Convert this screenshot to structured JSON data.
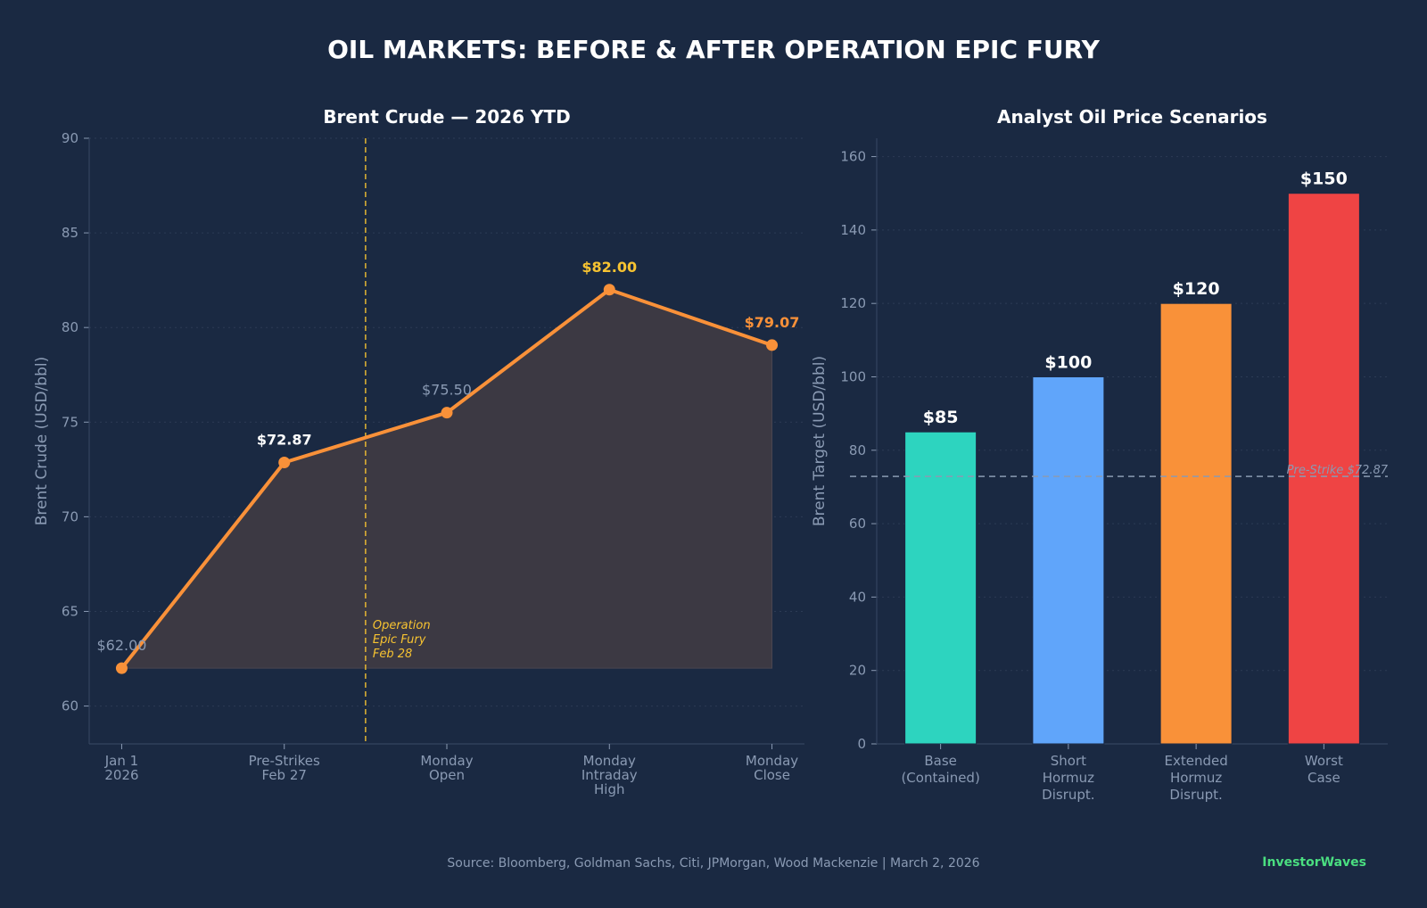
{
  "title": "OIL MARKETS: BEFORE & AFTER OPERATION EPIC FURY",
  "colors": {
    "background": "#1a2942",
    "line": "#f99139",
    "highlight": "#f7c331",
    "label_white": "#ffffff",
    "label_muted": "#8a9ab3",
    "brand": "#4ade80"
  },
  "chart_data": [
    {
      "type": "line",
      "title": "Brent Crude — 2026 YTD",
      "xlabel": "",
      "ylabel": "Brent Crude (USD/bbl)",
      "ylim": [
        58,
        90
      ],
      "yticks": [
        60,
        65,
        70,
        75,
        80,
        85,
        90
      ],
      "categories": [
        [
          "Jan 1",
          "2026"
        ],
        [
          "Pre-Strikes",
          "Feb 27"
        ],
        [
          "Monday",
          "Open"
        ],
        [
          "Monday",
          "Intraday",
          "High"
        ],
        [
          "Monday",
          "Close"
        ]
      ],
      "values": [
        62.0,
        72.87,
        75.5,
        82.0,
        79.07
      ],
      "data_labels": [
        {
          "text": "$62.00",
          "style": "muted"
        },
        {
          "text": "$72.87",
          "style": "white"
        },
        {
          "text": "$75.50",
          "style": "muted"
        },
        {
          "text": "$82.00",
          "style": "highlight"
        },
        {
          "text": "$79.07",
          "style": "line"
        }
      ],
      "event": {
        "x_position": 1.5,
        "label": [
          "Operation",
          "Epic Fury",
          "Feb 28"
        ]
      },
      "fill_baseline": 62.0
    },
    {
      "type": "bar",
      "title": "Analyst Oil Price Scenarios",
      "xlabel": "",
      "ylabel": "Brent Target (USD/bbl)",
      "ylim": [
        0,
        165
      ],
      "yticks": [
        0,
        20,
        40,
        60,
        80,
        100,
        120,
        140,
        160
      ],
      "categories": [
        [
          "Base",
          "(Contained)"
        ],
        [
          "Short",
          "Hormuz",
          "Disrupt."
        ],
        [
          "Extended",
          "Hormuz",
          "Disrupt."
        ],
        [
          "Worst",
          "Case"
        ]
      ],
      "values": [
        85,
        100,
        120,
        150
      ],
      "value_labels": [
        "$85",
        "$100",
        "$120",
        "$150"
      ],
      "bar_colors": [
        "#2dd4bf",
        "#60a5fa",
        "#f99139",
        "#ef4444"
      ],
      "reference_line": {
        "value": 72.87,
        "label": "Pre-Strike $72.87"
      }
    }
  ],
  "footer": {
    "source": "Source: Bloomberg, Goldman Sachs, Citi, JPMorgan, Wood Mackenzie  |  March 2, 2026",
    "brand": "InvestorWaves"
  }
}
